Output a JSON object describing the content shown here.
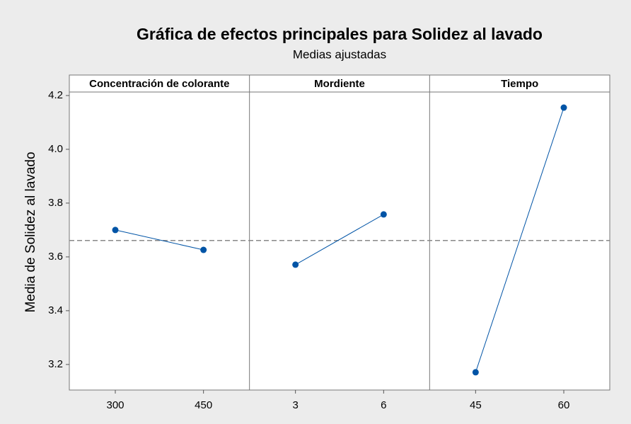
{
  "chart_data": {
    "type": "line",
    "title": "Gráfica de efectos principales para Solidez al lavado",
    "subtitle": "Medias ajustadas",
    "y_label": "Media de Solidez al lavado",
    "ylim": [
      3.105,
      4.213
    ],
    "yticks": [
      3.2,
      3.4,
      3.6,
      3.8,
      {
        "value": 4,
        "label": "4.0"
      },
      4.2
    ],
    "reference_line": 3.661,
    "color": "#0054a6",
    "panels": [
      {
        "title": "Concentración de colorante",
        "categories": [
          "300",
          "450"
        ],
        "values": [
          3.7,
          3.626
        ]
      },
      {
        "title": "Mordiente",
        "categories": [
          "3",
          "6"
        ],
        "values": [
          3.571,
          3.758
        ]
      },
      {
        "title": "Tiempo",
        "categories": [
          "45",
          "60"
        ],
        "values": [
          3.171,
          4.155
        ]
      }
    ]
  }
}
